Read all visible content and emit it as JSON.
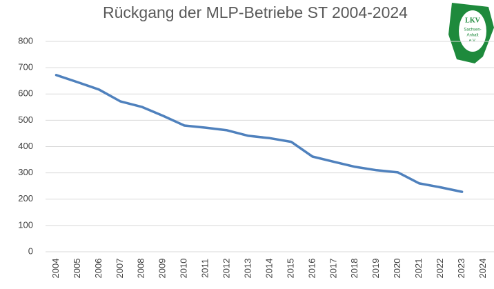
{
  "chart_data": {
    "type": "line",
    "title": "Rückgang der MLP-Betriebe ST 2004-2024",
    "categories": [
      "2004",
      "2005",
      "2006",
      "2007",
      "2008",
      "2009",
      "2010",
      "2011",
      "2012",
      "2013",
      "2014",
      "2015",
      "2016",
      "2017",
      "2018",
      "2019",
      "2020",
      "2021",
      "2022",
      "2023",
      "2024"
    ],
    "series": [
      {
        "name": "MLP-Betriebe",
        "color": "#4f81bd",
        "values": [
          672,
          645,
          617,
          572,
          551,
          517,
          480,
          472,
          462,
          441,
          432,
          418,
          362,
          342,
          323,
          310,
          302,
          260,
          245,
          228,
          null
        ]
      }
    ],
    "ylim": [
      0,
      800
    ],
    "yticks": [
      0,
      100,
      200,
      300,
      400,
      500,
      600,
      700,
      800
    ],
    "grid": true,
    "logo": {
      "title": "LKV",
      "line1": "Sachsen-",
      "line2": "Anhalt",
      "line3": "e.V."
    }
  }
}
